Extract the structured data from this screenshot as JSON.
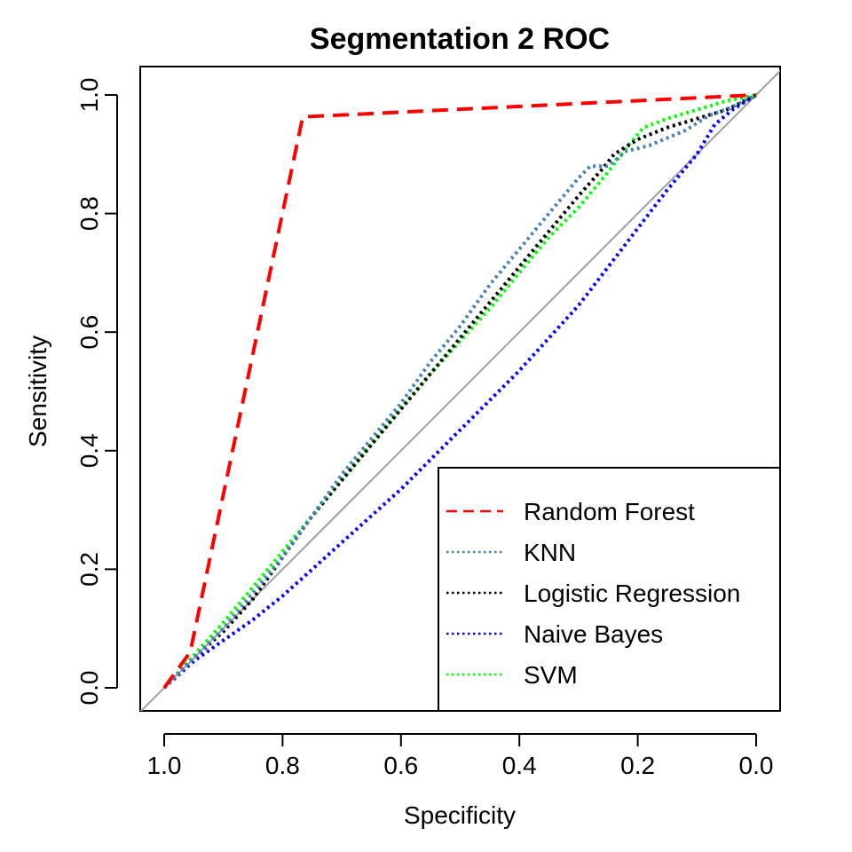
{
  "chart_data": {
    "type": "line",
    "title": "Segmentation 2 ROC",
    "xlabel": "Specificity",
    "ylabel": "Sensitivity",
    "xlim": [
      1.0,
      0.0
    ],
    "ylim": [
      0.0,
      1.0
    ],
    "x_reversed": true,
    "x_ticks": [
      "1.0",
      "0.8",
      "0.6",
      "0.4",
      "0.2",
      "0.0"
    ],
    "y_ticks": [
      "0.0",
      "0.2",
      "0.4",
      "0.6",
      "0.8",
      "1.0"
    ],
    "grid": false,
    "legend_position": "bottom-right",
    "diagonal_reference": {
      "color": "#a0a0a0",
      "points": [
        [
          1.0,
          0.0
        ],
        [
          0.0,
          1.0
        ]
      ]
    },
    "series": [
      {
        "name": "Random Forest",
        "color": "#ff0000",
        "dash": "dashed",
        "specificity": [
          1.0,
          0.956,
          0.766,
          0.0
        ],
        "sensitivity": [
          0.0,
          0.06,
          0.963,
          1.0
        ]
      },
      {
        "name": "KNN",
        "color": "#4682b4",
        "dash": "dotted",
        "specificity": [
          1.0,
          0.95,
          0.9,
          0.85,
          0.8,
          0.75,
          0.7,
          0.65,
          0.6,
          0.55,
          0.5,
          0.45,
          0.4,
          0.35,
          0.3,
          0.28,
          0.25,
          0.22,
          0.18,
          0.12,
          0.08,
          0.04,
          0.0
        ],
        "sensitivity": [
          0.0,
          0.05,
          0.1,
          0.16,
          0.22,
          0.29,
          0.36,
          0.42,
          0.48,
          0.55,
          0.61,
          0.68,
          0.74,
          0.8,
          0.86,
          0.88,
          0.88,
          0.905,
          0.915,
          0.94,
          0.965,
          0.98,
          1.0
        ]
      },
      {
        "name": "Logistic Regression",
        "color": "#000000",
        "dash": "dotted",
        "specificity": [
          1.0,
          0.95,
          0.9,
          0.85,
          0.8,
          0.75,
          0.7,
          0.65,
          0.6,
          0.55,
          0.5,
          0.45,
          0.4,
          0.35,
          0.3,
          0.26,
          0.24,
          0.2,
          0.15,
          0.1,
          0.05,
          0.0
        ],
        "sensitivity": [
          0.0,
          0.05,
          0.095,
          0.15,
          0.22,
          0.29,
          0.35,
          0.41,
          0.47,
          0.53,
          0.59,
          0.65,
          0.71,
          0.77,
          0.83,
          0.875,
          0.9,
          0.925,
          0.945,
          0.96,
          0.975,
          1.0
        ]
      },
      {
        "name": "Naive Bayes",
        "color": "#0000ff",
        "dash": "dotted",
        "specificity": [
          1.0,
          0.95,
          0.9,
          0.85,
          0.8,
          0.75,
          0.7,
          0.65,
          0.6,
          0.55,
          0.5,
          0.45,
          0.4,
          0.35,
          0.3,
          0.25,
          0.2,
          0.15,
          0.1,
          0.07,
          0.04,
          0.0
        ],
        "sensitivity": [
          0.0,
          0.045,
          0.08,
          0.115,
          0.155,
          0.2,
          0.245,
          0.29,
          0.335,
          0.385,
          0.435,
          0.485,
          0.535,
          0.59,
          0.645,
          0.71,
          0.775,
          0.84,
          0.9,
          0.95,
          0.975,
          1.0
        ]
      },
      {
        "name": "SVM",
        "color": "#00ff00",
        "dash": "dotted",
        "specificity": [
          1.0,
          0.95,
          0.9,
          0.85,
          0.8,
          0.75,
          0.7,
          0.65,
          0.6,
          0.55,
          0.5,
          0.45,
          0.4,
          0.35,
          0.3,
          0.25,
          0.22,
          0.19,
          0.15,
          0.1,
          0.05,
          0.0
        ],
        "sensitivity": [
          0.0,
          0.055,
          0.11,
          0.17,
          0.23,
          0.29,
          0.35,
          0.41,
          0.47,
          0.53,
          0.585,
          0.64,
          0.7,
          0.76,
          0.81,
          0.87,
          0.91,
          0.945,
          0.96,
          0.975,
          0.99,
          1.0
        ]
      }
    ]
  }
}
